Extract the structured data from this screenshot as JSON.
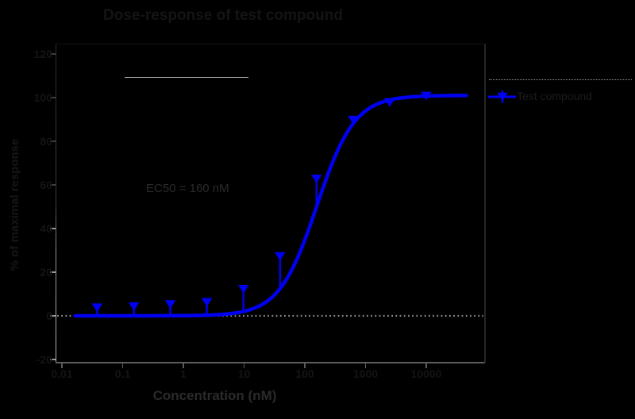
{
  "figure": {
    "title": "Dose-response of test compound",
    "y_axis_label": "% of maximal response",
    "x_axis_label": "Concentration (nM)",
    "annotation": "EC50 = 160 nM",
    "legend": {
      "label": "Test compound",
      "symbol": "blue-line-with-down-triangle"
    }
  },
  "chart_data": {
    "type": "scatter",
    "title": "Dose-response of test compound",
    "xlabel": "Concentration (nM)",
    "ylabel": "% of maximal response",
    "x_scale": "log10",
    "x_ticks": [
      "0.01",
      "0.1",
      "1",
      "10",
      "100",
      "1000",
      "10000"
    ],
    "y_ticks": [
      120,
      100,
      80,
      60,
      40,
      20,
      0,
      -20
    ],
    "ylim": [
      -22,
      125
    ],
    "xlim_log": [
      -2.1,
      4.97
    ],
    "grid": false,
    "legend_position": "right-outside",
    "series": [
      {
        "name": "Test compound",
        "marker": "triangle-down",
        "color": "#0000F2",
        "x_nM": [
          0.038,
          0.153,
          0.61,
          2.44,
          9.77,
          39.1,
          156,
          625,
          2500,
          10000
        ],
        "y_pct": [
          4,
          4.5,
          5.5,
          6.5,
          12.5,
          27.5,
          63,
          90,
          98,
          101
        ]
      }
    ],
    "fit": {
      "model": "4PL-sigmoid",
      "bottom": 0,
      "top": 101,
      "log_ec50": 2.2,
      "hill": 1.4
    },
    "baseline": {
      "y": 0,
      "style": "dotted",
      "color": "#8a8a8a"
    }
  },
  "colors": {
    "background": "#000000",
    "curve": "#0000F2",
    "marker": "#0000F2",
    "baseline_dotted": "#8a8a8a",
    "spines": "#5e5e5e",
    "hidden_text": "#141414"
  }
}
